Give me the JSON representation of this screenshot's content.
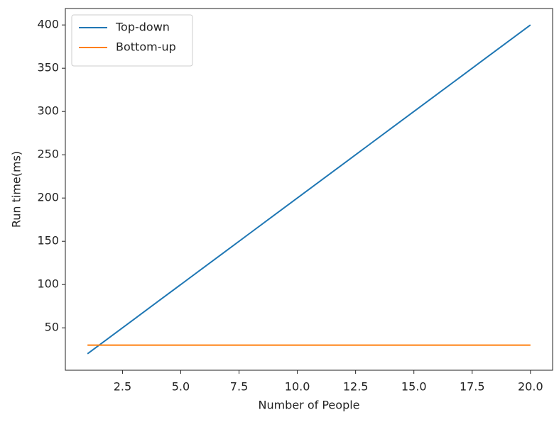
{
  "chart_data": {
    "type": "line",
    "xlabel": "Number of People",
    "ylabel": "Run time(ms)",
    "x": [
      1,
      2,
      3,
      4,
      5,
      6,
      7,
      8,
      9,
      10,
      11,
      12,
      13,
      14,
      15,
      16,
      17,
      18,
      19,
      20
    ],
    "series": [
      {
        "name": "Top-down",
        "color": "#1f77b4",
        "values": [
          20,
          40,
          60,
          80,
          100,
          120,
          140,
          160,
          180,
          200,
          220,
          240,
          260,
          280,
          300,
          320,
          340,
          360,
          380,
          400
        ]
      },
      {
        "name": "Bottom-up",
        "color": "#ff7f0e",
        "values": [
          30,
          30,
          30,
          30,
          30,
          30,
          30,
          30,
          30,
          30,
          30,
          30,
          30,
          30,
          30,
          30,
          30,
          30,
          30,
          30
        ]
      }
    ],
    "xlim": [
      0.05,
      20.95
    ],
    "xticks": [
      {
        "value": 2.5,
        "label": "2.5"
      },
      {
        "value": 5,
        "label": "5.0"
      },
      {
        "value": 7.5,
        "label": "7.5"
      },
      {
        "value": 10,
        "label": "10.0"
      },
      {
        "value": 12.5,
        "label": "12.5"
      },
      {
        "value": 15,
        "label": "15.0"
      },
      {
        "value": 17.5,
        "label": "17.5"
      },
      {
        "value": 20,
        "label": "20.0"
      }
    ],
    "ylim": [
      1,
      419
    ],
    "yticks": [
      50,
      100,
      150,
      200,
      250,
      300,
      350,
      400
    ],
    "grid": false,
    "legend": "upper-left"
  }
}
